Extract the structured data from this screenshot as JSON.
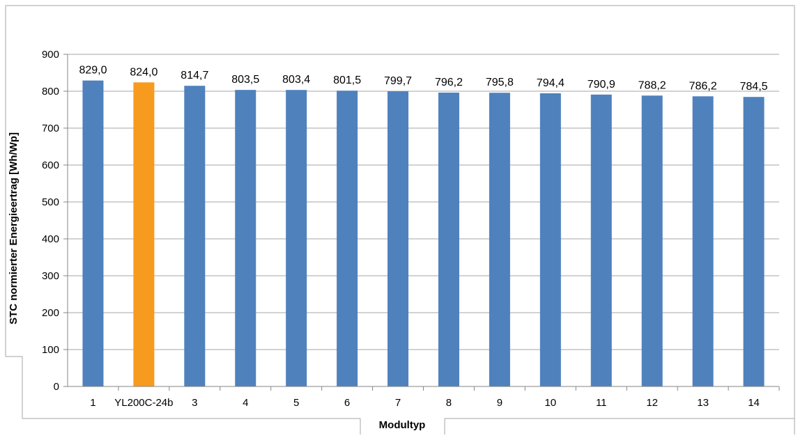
{
  "chart_data": {
    "type": "bar",
    "xlabel": "Modultyp",
    "ylabel": "STC normierter Energieertrag [Wh/Wp]",
    "ylim": [
      0,
      900
    ],
    "yticks": [
      0,
      100,
      200,
      300,
      400,
      500,
      600,
      700,
      800,
      900
    ],
    "grid": true,
    "categories": [
      "1",
      "YL200C-24b",
      "3",
      "4",
      "5",
      "6",
      "7",
      "8",
      "9",
      "10",
      "11",
      "12",
      "13",
      "14"
    ],
    "values": [
      829.0,
      824.0,
      814.7,
      803.5,
      803.4,
      801.5,
      799.7,
      796.2,
      795.8,
      794.4,
      790.9,
      788.2,
      786.2,
      784.5
    ],
    "value_labels": [
      "829,0",
      "824,0",
      "814,7",
      "803,5",
      "803,4",
      "801,5",
      "799,7",
      "796,2",
      "795,8",
      "794,4",
      "790,9",
      "788,2",
      "786,2",
      "784,5"
    ],
    "highlight_category": "YL200C-24b",
    "colors": {
      "bar": "#4F81BD",
      "highlight": "#F79B1F",
      "grid": "#A6A6A6",
      "axis": "#868686",
      "text": "#000000",
      "frame": "#A6A6A6"
    }
  }
}
